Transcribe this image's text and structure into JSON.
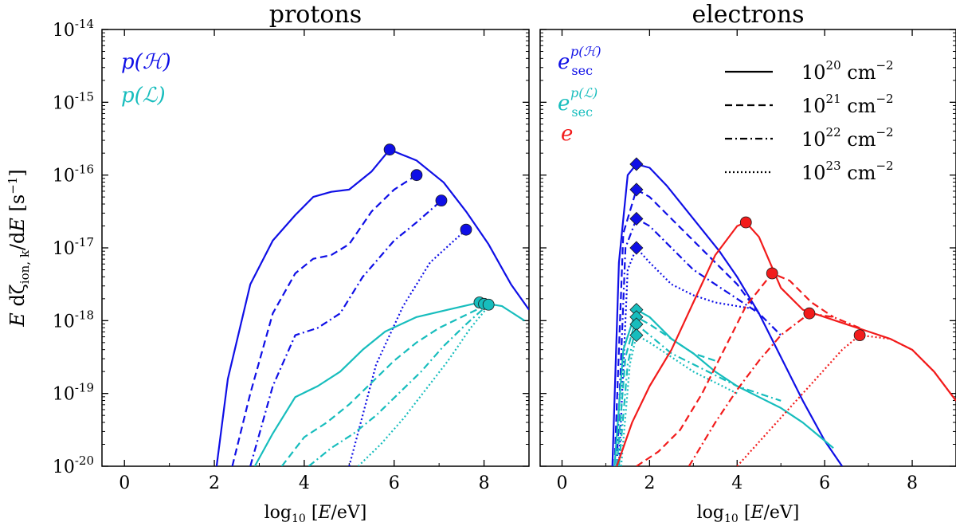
{
  "chart_data": [
    {
      "type": "line",
      "title": "protons",
      "ylabel": "E dζ_ion,k/dE [s⁻¹]",
      "xlabel": "log10 [E/eV]",
      "x_ticks": [
        0,
        2,
        4,
        6,
        8
      ],
      "x_tick_labels": [
        "0",
        "2",
        "4",
        "6",
        "8"
      ],
      "xlim": [
        -0.5,
        9
      ],
      "ylim_log10": [
        -20,
        -14
      ],
      "y_tick_labels": [
        "10-20",
        "10-19",
        "10-18",
        "10-17",
        "10-16",
        "10-15",
        "10-14"
      ],
      "legend": [
        {
          "label": "p(ℋ)",
          "color": "#0f0fe6"
        },
        {
          "label": "p(ℒ)",
          "color": "#17bdbd"
        }
      ],
      "series": [
        {
          "name": "p(H) 1e20",
          "color": "#0f0fe6",
          "dash": "solid",
          "x": [
            2.05,
            2.3,
            2.8,
            3.3,
            3.8,
            4.2,
            4.6,
            5.0,
            5.5,
            5.9,
            6.5,
            7.1,
            7.6,
            8.1,
            8.6,
            9.0
          ],
          "y": [
            -20.0,
            -18.8,
            -17.5,
            -16.9,
            -16.55,
            -16.3,
            -16.23,
            -16.2,
            -15.95,
            -15.65,
            -15.8,
            -16.1,
            -16.5,
            -16.95,
            -17.5,
            -17.85
          ]
        },
        {
          "name": "p(H) 1e21",
          "color": "#0f0fe6",
          "dash": "dashed",
          "x": [
            2.4,
            2.8,
            3.3,
            3.8,
            4.2,
            4.6,
            5.0,
            5.5,
            6.0,
            6.5
          ],
          "y": [
            -20.0,
            -19.0,
            -17.9,
            -17.35,
            -17.15,
            -17.1,
            -16.95,
            -16.5,
            -16.2,
            -16.0
          ]
        },
        {
          "name": "p(H) 1e22",
          "color": "#0f0fe6",
          "dash": "dashdot",
          "x": [
            2.8,
            3.3,
            3.8,
            4.3,
            4.8,
            5.3,
            6.0,
            6.5,
            7.05
          ],
          "y": [
            -20.0,
            -18.9,
            -18.2,
            -18.1,
            -17.9,
            -17.4,
            -16.9,
            -16.65,
            -16.35
          ]
        },
        {
          "name": "p(H) 1e23",
          "color": "#0f0fe6",
          "dash": "dotted",
          "x": [
            5.0,
            5.6,
            6.2,
            6.8,
            7.6
          ],
          "y": [
            -20.0,
            -18.6,
            -17.8,
            -17.2,
            -16.75
          ]
        },
        {
          "name": "p(L) 1e20",
          "color": "#17bdbd",
          "dash": "solid",
          "x": [
            2.9,
            3.3,
            3.8,
            4.3,
            4.8,
            5.3,
            5.8,
            6.5,
            7.2,
            7.9,
            8.4,
            8.9
          ],
          "y": [
            -20.0,
            -19.55,
            -19.05,
            -18.9,
            -18.7,
            -18.4,
            -18.15,
            -17.95,
            -17.85,
            -17.75,
            -17.8,
            -18.0
          ]
        },
        {
          "name": "p(L) 1e21",
          "color": "#17bdbd",
          "dash": "dashed",
          "x": [
            3.5,
            4.0,
            4.5,
            5.0,
            5.5,
            6.0,
            6.5,
            7.0,
            7.5,
            8.0
          ],
          "y": [
            -20.0,
            -19.6,
            -19.4,
            -19.15,
            -18.85,
            -18.55,
            -18.3,
            -18.1,
            -17.95,
            -17.8
          ]
        },
        {
          "name": "p(L) 1e22",
          "color": "#17bdbd",
          "dash": "dashdot",
          "x": [
            4.1,
            4.6,
            5.1,
            5.6,
            6.1,
            6.6,
            7.1,
            7.6,
            8.05
          ],
          "y": [
            -20.0,
            -19.75,
            -19.55,
            -19.3,
            -19.0,
            -18.7,
            -18.35,
            -18.05,
            -17.8
          ]
        },
        {
          "name": "p(L) 1e23",
          "color": "#17bdbd",
          "dash": "dotted",
          "x": [
            5.2,
            5.7,
            6.2,
            6.7,
            7.2,
            7.7,
            8.1
          ],
          "y": [
            -20.0,
            -19.7,
            -19.35,
            -18.95,
            -18.55,
            -18.1,
            -17.8
          ]
        }
      ],
      "markers": [
        {
          "shape": "circle",
          "color": "#0f0fe6",
          "x": 5.9,
          "y": -15.65
        },
        {
          "shape": "circle",
          "color": "#0f0fe6",
          "x": 6.5,
          "y": -16.0
        },
        {
          "shape": "circle",
          "color": "#0f0fe6",
          "x": 7.05,
          "y": -16.35
        },
        {
          "shape": "circle",
          "color": "#0f0fe6",
          "x": 7.6,
          "y": -16.75
        },
        {
          "shape": "circle",
          "color": "#17bdbd",
          "x": 7.9,
          "y": -17.75
        },
        {
          "shape": "circle",
          "color": "#17bdbd",
          "x": 8.0,
          "y": -17.77
        },
        {
          "shape": "circle",
          "color": "#17bdbd",
          "x": 8.1,
          "y": -17.78
        }
      ]
    },
    {
      "type": "line",
      "title": "electrons",
      "xlabel": "log10 [E/eV]",
      "x_ticks": [
        0,
        2,
        4,
        6,
        8
      ],
      "x_tick_labels": [
        "0",
        "2",
        "4",
        "6",
        "8"
      ],
      "xlim": [
        -0.5,
        9
      ],
      "ylim_log10": [
        -20,
        -14
      ],
      "legend": [
        {
          "label": "e_sec^p(ℋ)",
          "color": "#0f0fe6"
        },
        {
          "label": "e_sec^p(ℒ)",
          "color": "#17bdbd"
        },
        {
          "label": "e",
          "color": "#f21b1b"
        }
      ],
      "column_legend": [
        {
          "dash": "solid",
          "base": "10",
          "exp": "20",
          "unit": "cm",
          "unit_exp": "−2"
        },
        {
          "dash": "dashed",
          "base": "10",
          "exp": "21",
          "unit": "cm",
          "unit_exp": "−2"
        },
        {
          "dash": "dashdot",
          "base": "10",
          "exp": "22",
          "unit": "cm",
          "unit_exp": "−2"
        },
        {
          "dash": "dotted",
          "base": "10",
          "exp": "23",
          "unit": "cm",
          "unit_exp": "−2"
        }
      ],
      "series": [
        {
          "name": "e_sec p(H) 1e20",
          "color": "#0f0fe6",
          "dash": "solid",
          "x": [
            1.15,
            1.3,
            1.5,
            1.7,
            2.0,
            2.4,
            2.8,
            3.2,
            3.6,
            4.0,
            4.5,
            5.0,
            5.5,
            6.0,
            6.4
          ],
          "y": [
            -20.0,
            -17.2,
            -16.0,
            -15.85,
            -15.9,
            -16.15,
            -16.45,
            -16.75,
            -17.05,
            -17.4,
            -17.9,
            -18.5,
            -19.1,
            -19.65,
            -20.0
          ]
        },
        {
          "name": "e_sec p(H) 1e21",
          "color": "#0f0fe6",
          "dash": "dashed",
          "x": [
            1.2,
            1.4,
            1.7,
            2.0,
            2.5,
            3.0,
            3.5,
            4.0,
            4.5
          ],
          "y": [
            -20.0,
            -16.8,
            -16.2,
            -16.3,
            -16.6,
            -16.9,
            -17.2,
            -17.5,
            -17.9
          ]
        },
        {
          "name": "e_sec p(H) 1e22",
          "color": "#0f0fe6",
          "dash": "dashdot",
          "x": [
            1.25,
            1.45,
            1.7,
            2.0,
            2.5,
            3.0,
            3.5,
            4.0,
            4.5,
            5.0
          ],
          "y": [
            -20.0,
            -17.0,
            -16.6,
            -16.7,
            -17.0,
            -17.3,
            -17.5,
            -17.7,
            -17.9,
            -18.2
          ]
        },
        {
          "name": "e_sec p(H) 1e23",
          "color": "#0f0fe6",
          "dash": "dotted",
          "x": [
            1.3,
            1.5,
            1.7,
            2.0,
            2.5,
            3.0,
            3.5,
            4.0,
            4.5
          ],
          "y": [
            -20.0,
            -17.3,
            -17.0,
            -17.2,
            -17.5,
            -17.65,
            -17.75,
            -17.8,
            -17.85
          ]
        },
        {
          "name": "e_sec p(L) 1e20",
          "color": "#17bdbd",
          "dash": "solid",
          "x": [
            1.2,
            1.4,
            1.7,
            2.0,
            2.5,
            3.0,
            3.5,
            4.0,
            4.5,
            5.0,
            5.5,
            6.0,
            6.2
          ],
          "y": [
            -20.0,
            -18.4,
            -17.85,
            -17.95,
            -18.25,
            -18.45,
            -18.7,
            -18.9,
            -19.05,
            -19.2,
            -19.4,
            -19.65,
            -19.75
          ]
        },
        {
          "name": "e_sec p(L) 1e21",
          "color": "#17bdbd",
          "dash": "dashed",
          "x": [
            1.25,
            1.45,
            1.7,
            2.0,
            2.5,
            3.0,
            3.5
          ],
          "y": [
            -20.0,
            -18.5,
            -17.95,
            -18.05,
            -18.25,
            -18.45,
            -18.55
          ]
        },
        {
          "name": "e_sec p(L) 1e22",
          "color": "#17bdbd",
          "dash": "dashdot",
          "x": [
            1.3,
            1.5,
            1.7,
            2.0,
            2.5,
            3.0,
            3.5,
            4.0,
            4.5,
            5.0
          ],
          "y": [
            -20.0,
            -18.6,
            -18.05,
            -18.2,
            -18.45,
            -18.6,
            -18.75,
            -18.9,
            -19.0,
            -19.1
          ]
        },
        {
          "name": "e_sec p(L) 1e23",
          "color": "#17bdbd",
          "dash": "dotted",
          "x": [
            1.35,
            1.55,
            1.7,
            2.0,
            2.5,
            3.0,
            3.5,
            4.0
          ],
          "y": [
            -20.0,
            -18.6,
            -18.2,
            -18.3,
            -18.5,
            -18.7,
            -18.85,
            -19.0
          ]
        },
        {
          "name": "e 1e20",
          "color": "#f21b1b",
          "dash": "solid",
          "x": [
            1.25,
            1.6,
            2.0,
            2.5,
            3.0,
            3.5,
            4.0,
            4.2,
            4.5,
            5.0,
            5.5,
            6.0,
            6.5,
            7.0,
            7.5,
            8.0,
            8.5,
            9.0
          ],
          "y": [
            -20.0,
            -19.4,
            -18.9,
            -18.4,
            -17.75,
            -17.1,
            -16.7,
            -16.65,
            -16.85,
            -17.55,
            -17.85,
            -17.95,
            -18.05,
            -18.15,
            -18.25,
            -18.4,
            -18.7,
            -19.1
          ]
        },
        {
          "name": "e 1e21",
          "color": "#f21b1b",
          "dash": "dashed",
          "x": [
            1.7,
            2.2,
            2.7,
            3.2,
            3.7,
            4.2,
            4.8,
            5.2,
            5.7,
            6.2
          ],
          "y": [
            -20.0,
            -19.8,
            -19.5,
            -19.0,
            -18.4,
            -17.8,
            -17.35,
            -17.45,
            -17.75,
            -17.95
          ]
        },
        {
          "name": "e 1e22",
          "color": "#f21b1b",
          "dash": "dashdot",
          "x": [
            2.9,
            3.5,
            4.0,
            4.5,
            5.0,
            5.65,
            6.2,
            6.8
          ],
          "y": [
            -20.0,
            -19.4,
            -18.95,
            -18.55,
            -18.2,
            -17.9,
            -17.95,
            -18.1
          ]
        },
        {
          "name": "e 1e23",
          "color": "#f21b1b",
          "dash": "dotted",
          "x": [
            4.0,
            4.6,
            5.2,
            5.8,
            6.4,
            6.8,
            7.5,
            8.0,
            8.5,
            9.0
          ],
          "y": [
            -20.0,
            -19.6,
            -19.2,
            -18.8,
            -18.4,
            -18.2,
            -18.25,
            -18.4,
            -18.7,
            -19.1
          ]
        }
      ],
      "markers": [
        {
          "shape": "diamond",
          "color": "#0f0fe6",
          "x": 1.7,
          "y": -15.85
        },
        {
          "shape": "diamond",
          "color": "#0f0fe6",
          "x": 1.7,
          "y": -16.2
        },
        {
          "shape": "diamond",
          "color": "#0f0fe6",
          "x": 1.7,
          "y": -16.6
        },
        {
          "shape": "diamond",
          "color": "#0f0fe6",
          "x": 1.7,
          "y": -17.0
        },
        {
          "shape": "diamond",
          "color": "#17bdbd",
          "x": 1.7,
          "y": -17.85
        },
        {
          "shape": "diamond",
          "color": "#17bdbd",
          "x": 1.7,
          "y": -17.95
        },
        {
          "shape": "diamond",
          "color": "#17bdbd",
          "x": 1.7,
          "y": -18.05
        },
        {
          "shape": "diamond",
          "color": "#17bdbd",
          "x": 1.7,
          "y": -18.2
        },
        {
          "shape": "circle",
          "color": "#f21b1b",
          "x": 4.2,
          "y": -16.65
        },
        {
          "shape": "circle",
          "color": "#f21b1b",
          "x": 4.8,
          "y": -17.35
        },
        {
          "shape": "circle",
          "color": "#f21b1b",
          "x": 5.65,
          "y": -17.9
        },
        {
          "shape": "circle",
          "color": "#f21b1b",
          "x": 6.8,
          "y": -18.2
        }
      ]
    }
  ]
}
